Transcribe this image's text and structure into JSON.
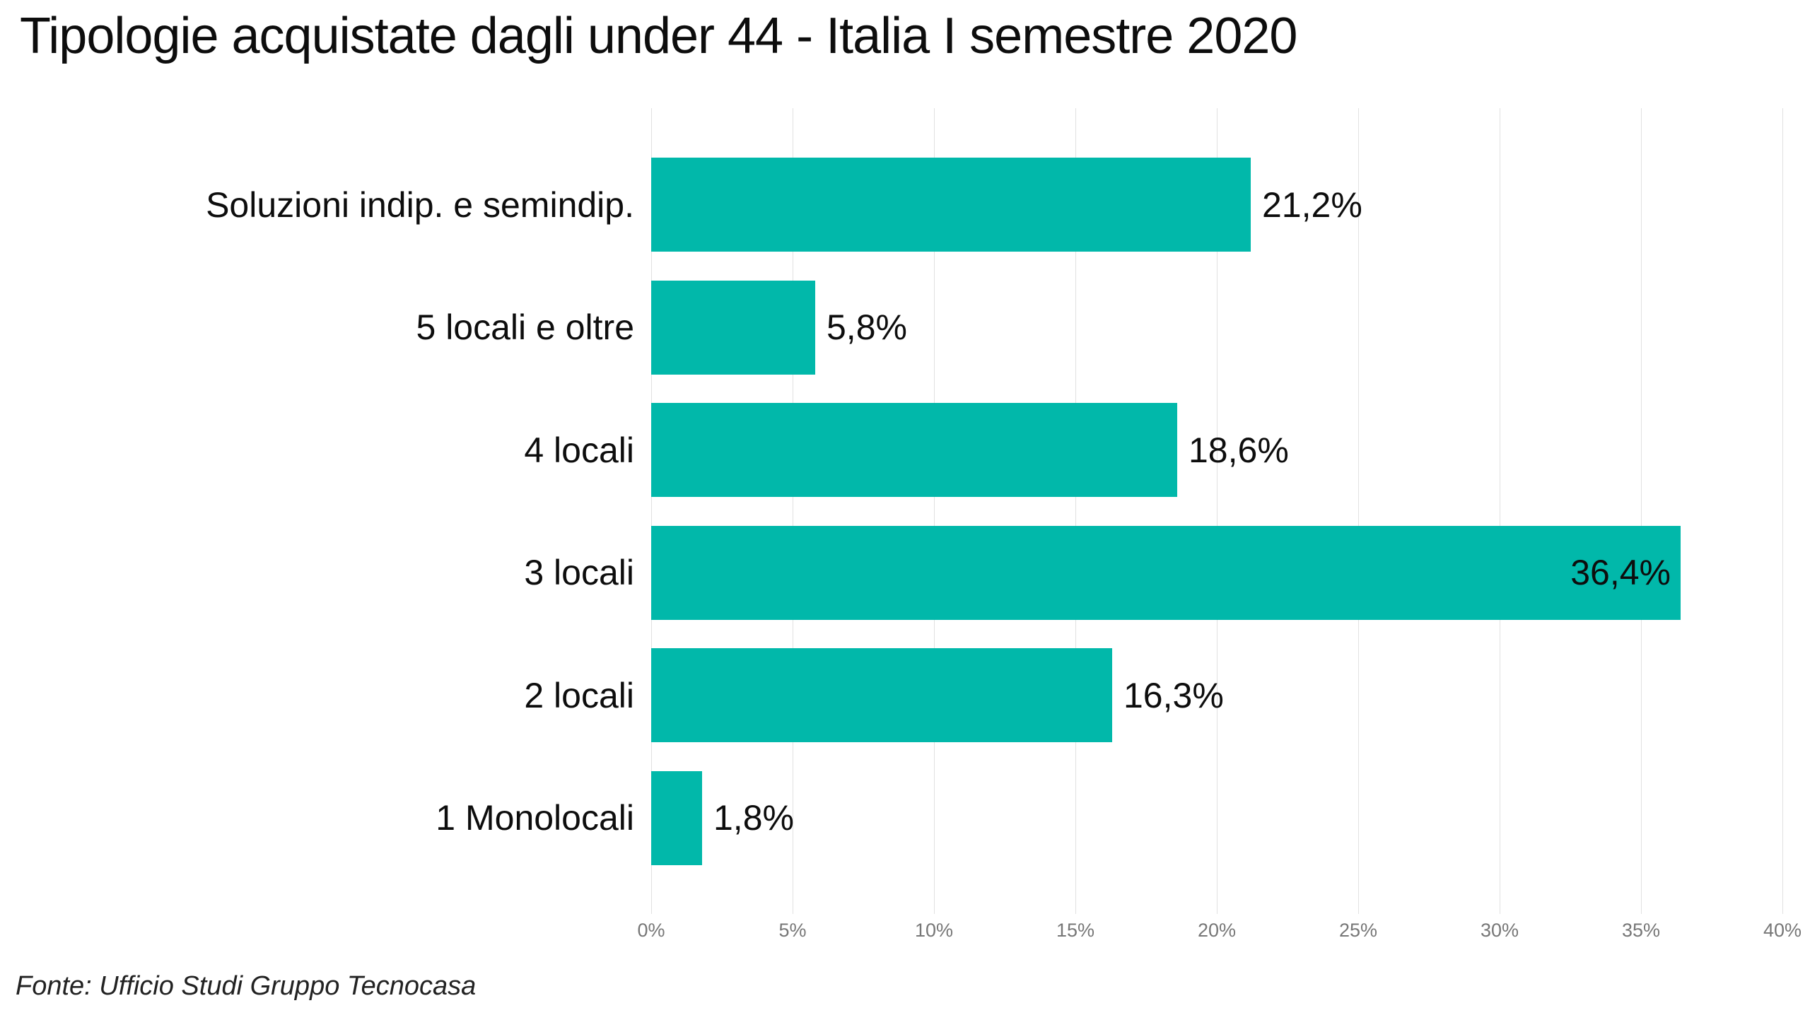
{
  "page": {
    "title": "Tipologie acquistate dagli under 44 - Italia I semestre 2020",
    "source_note": "Fonte: Ufficio Studi Gruppo Tecnocasa"
  },
  "colors": {
    "bar": "#01B8AA",
    "gridline": "#E1E1E1",
    "tick_label": "#777777",
    "label_text": "#0D0D0D",
    "background": "#FFFFFF"
  },
  "chart_data": {
    "type": "bar",
    "orientation": "horizontal",
    "title": "Tipologie acquistate dagli under 44 - Italia I semestre 2020",
    "categories": [
      "Soluzioni indip. e semindip.",
      "5 locali e oltre",
      "4 locali",
      "3 locali",
      "2 locali",
      "1 Monolocali"
    ],
    "values": [
      21.2,
      5.8,
      18.6,
      36.4,
      16.3,
      1.8
    ],
    "value_labels": [
      "21,2%",
      "5,8%",
      "18,6%",
      "36,4%",
      "16,3%",
      "1,8%"
    ],
    "label_placement": [
      "outside",
      "outside",
      "outside",
      "inside",
      "outside",
      "outside"
    ],
    "xlim": [
      0,
      40
    ],
    "x_tick_values": [
      0,
      5,
      10,
      15,
      20,
      25,
      30,
      35,
      40
    ],
    "x_tick_labels": [
      "0%",
      "5%",
      "10%",
      "15%",
      "20%",
      "25%",
      "30%",
      "35%",
      "40%"
    ],
    "grid": "vertical",
    "legend": "none",
    "bar_color": "#01B8AA",
    "source": "Fonte: Ufficio Studi Gruppo Tecnocasa"
  }
}
